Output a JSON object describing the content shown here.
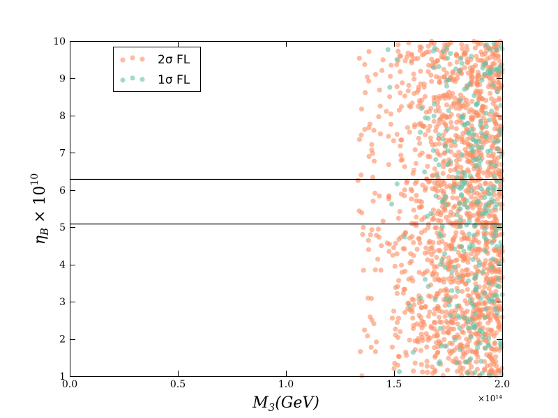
{
  "chart_data": {
    "type": "scatter",
    "title": "",
    "xlabel": "M_3(GeV)",
    "ylabel": "η_B × 10^10",
    "xlim": [
      0.0,
      2.0
    ],
    "ylim": [
      1,
      10
    ],
    "x_offset_label": "×10¹⁴",
    "x_ticks": [
      "0.0",
      "0.5",
      "1.0",
      "1.5",
      "2.0"
    ],
    "y_ticks": [
      "1",
      "2",
      "3",
      "4",
      "5",
      "6",
      "7",
      "8",
      "9",
      "10"
    ],
    "hlines": [
      5.1,
      6.3
    ],
    "legend_position": "top-left",
    "series": [
      {
        "name": "2σ FL",
        "color": "#fc8d62",
        "approx_count": 1500,
        "x_range": [
          1.33,
          2.0
        ],
        "y_range": [
          1,
          10
        ],
        "density_note": "sparse near 1.33–1.45, dense 1.5–2.0"
      },
      {
        "name": "1σ FL",
        "color": "#66c2a5",
        "approx_count": 300,
        "x_range": [
          1.45,
          2.0
        ],
        "y_range": [
          1,
          10
        ],
        "density_note": "concentrated 1.75–2.0"
      }
    ]
  },
  "legend": {
    "items": [
      {
        "label": "2σ FL",
        "color": "#fc8d62"
      },
      {
        "label": "1σ FL",
        "color": "#66c2a5"
      }
    ]
  }
}
